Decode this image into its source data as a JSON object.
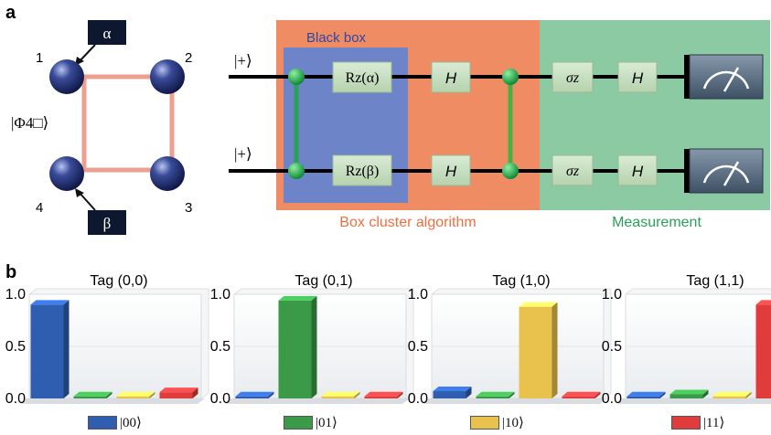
{
  "panel_labels": {
    "a": "a",
    "b": "b"
  },
  "cluster": {
    "state_label": "|Φ4□⟩",
    "qubit_numbers": [
      "1",
      "2",
      "3",
      "4"
    ],
    "tags": [
      "α",
      "β"
    ]
  },
  "circuit": {
    "input_labels": [
      "|+⟩",
      "|+⟩"
    ],
    "black_box_label": "Black box",
    "gates_top": [
      "Rz(α)",
      "H",
      "σz",
      "H"
    ],
    "gates_bottom": [
      "Rz(β)",
      "H",
      "σz",
      "H"
    ],
    "algorithm_label": "Box cluster algorithm",
    "measurement_label": "Measurement",
    "colors": {
      "algorithm": "#f08c64",
      "black_box": "#6d84c8",
      "measurement": "#8ccaa4",
      "cz": "#2aa058"
    }
  },
  "chart_data": [
    {
      "type": "bar",
      "title": "Tag (0,0)",
      "categories": [
        "|00⟩",
        "|01⟩",
        "|10⟩",
        "|11⟩"
      ],
      "values": [
        0.9,
        0.02,
        0.02,
        0.06
      ],
      "ylim": [
        0,
        1
      ],
      "yticks": [
        "1.0",
        "0.5",
        "0.0"
      ]
    },
    {
      "type": "bar",
      "title": "Tag (0,1)",
      "categories": [
        "|00⟩",
        "|01⟩",
        "|10⟩",
        "|11⟩"
      ],
      "values": [
        0.02,
        0.94,
        0.02,
        0.02
      ],
      "ylim": [
        0,
        1
      ],
      "yticks": [
        "1.0",
        "0.5",
        "0.0"
      ]
    },
    {
      "type": "bar",
      "title": "Tag (1,0)",
      "categories": [
        "|00⟩",
        "|01⟩",
        "|10⟩",
        "|11⟩"
      ],
      "values": [
        0.07,
        0.02,
        0.88,
        0.02
      ],
      "ylim": [
        0,
        1
      ],
      "yticks": [
        "1.0",
        "0.5",
        "0.0"
      ]
    },
    {
      "type": "bar",
      "title": "Tag (1,1)",
      "categories": [
        "|00⟩",
        "|01⟩",
        "|10⟩",
        "|11⟩"
      ],
      "values": [
        0.02,
        0.04,
        0.02,
        0.9
      ],
      "ylim": [
        0,
        1
      ],
      "yticks": [
        "1.0",
        "0.5",
        "0.0"
      ]
    }
  ],
  "legend": {
    "items": [
      {
        "label": "|00⟩",
        "color": "#2f5db0"
      },
      {
        "label": "|01⟩",
        "color": "#3a9a48"
      },
      {
        "label": "|10⟩",
        "color": "#e8c24c"
      },
      {
        "label": "|11⟩",
        "color": "#e03c3c"
      }
    ]
  }
}
